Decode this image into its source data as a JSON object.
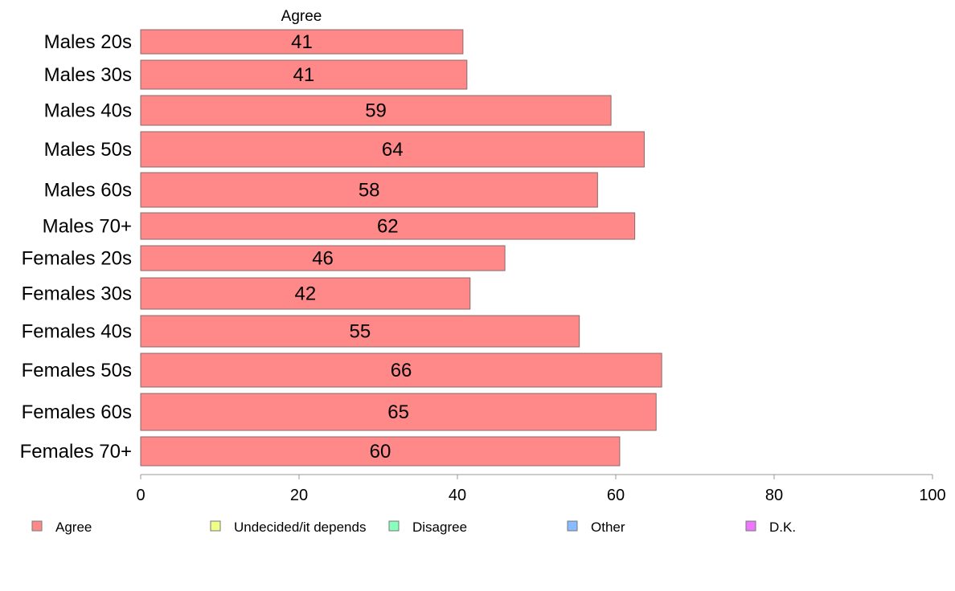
{
  "chart_data": {
    "type": "bar",
    "orientation": "horizontal",
    "stacked": true,
    "column_header": "Agree",
    "categories": [
      "Males 20s",
      "Males 30s",
      "Males 40s",
      "Males 50s",
      "Males 60s",
      "Males 70+",
      "Females 20s",
      "Females 30s",
      "Females 40s",
      "Females 50s",
      "Females 60s",
      "Females 70+"
    ],
    "series": [
      {
        "name": "Agree",
        "color": "#ff8888",
        "values": [
          40.7,
          41.2,
          59.4,
          63.6,
          57.7,
          62.4,
          46.0,
          41.6,
          55.4,
          65.8,
          65.1,
          60.5
        ],
        "labels": [
          "41",
          "41",
          "59",
          "64",
          "58",
          "62",
          "46",
          "42",
          "55",
          "66",
          "65",
          "60"
        ]
      }
    ],
    "xlim": [
      0,
      100
    ],
    "xticks": [
      "0",
      "20",
      "40",
      "60",
      "80",
      "100"
    ],
    "xticks_values": [
      0,
      20,
      40,
      60,
      80,
      100
    ],
    "grid": false,
    "legend": {
      "position": "bottom",
      "items": [
        {
          "label": "Agree",
          "color": "#ff8888"
        },
        {
          "label": "Undecided/it depends",
          "color": "#efff88"
        },
        {
          "label": "Disagree",
          "color": "#88ffbb"
        },
        {
          "label": "Other",
          "color": "#88bbff"
        },
        {
          "label": "D.K.",
          "color": "#ee77ff"
        }
      ]
    }
  }
}
